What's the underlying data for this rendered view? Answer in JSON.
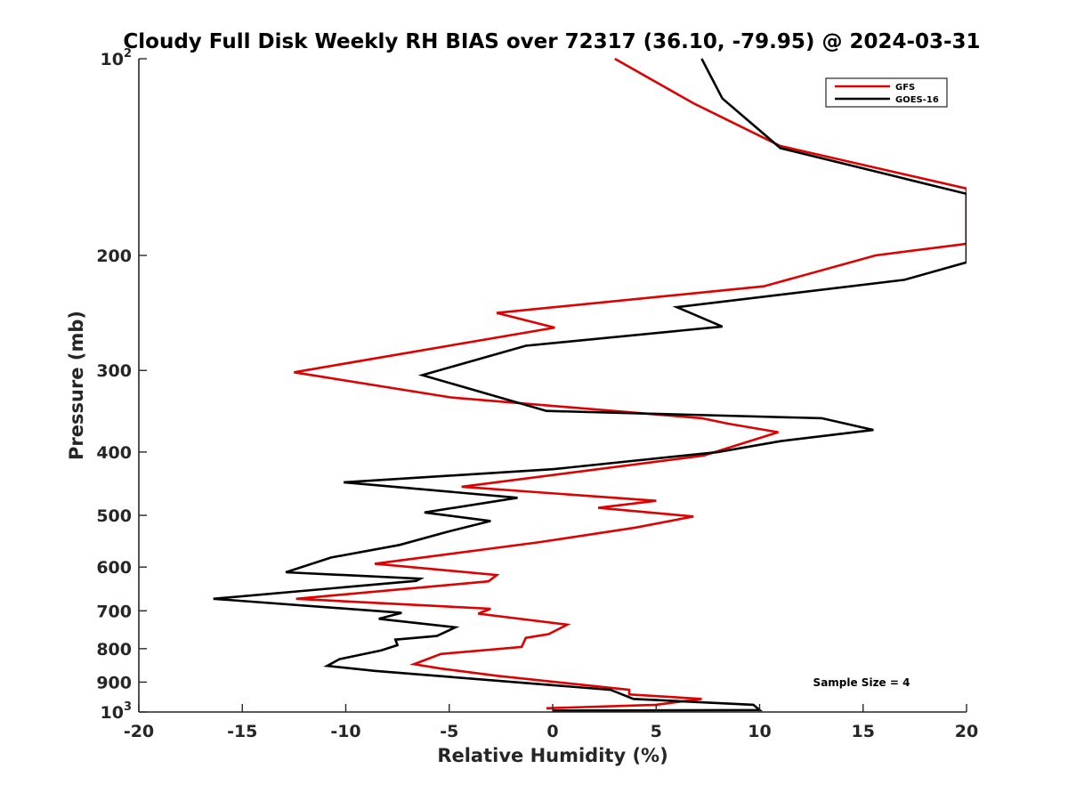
{
  "chart_data": {
    "type": "line",
    "title": "Cloudy Full Disk Weekly RH BIAS over 72317 (36.10, -79.95) @ 2024-03-31",
    "xlabel": "Relative Humidity (%)",
    "ylabel": "Pressure (mb)",
    "xlim": [
      -20,
      20
    ],
    "ylim": [
      100,
      1000
    ],
    "y_scale": "log",
    "y_reversed": true,
    "grid": false,
    "legend_position": "top-right",
    "x_ticks": [
      -20,
      -15,
      -10,
      -5,
      0,
      5,
      10,
      15,
      20
    ],
    "x_tick_labels": [
      "-20",
      "-15",
      "-10",
      "-5",
      "0",
      "5",
      "10",
      "15",
      "20"
    ],
    "y_ticks": [
      {
        "value": 100,
        "label": "10",
        "sup": "2"
      },
      {
        "value": 200,
        "label": "200",
        "sup": ""
      },
      {
        "value": 300,
        "label": "300",
        "sup": ""
      },
      {
        "value": 400,
        "label": "400",
        "sup": ""
      },
      {
        "value": 500,
        "label": "500",
        "sup": ""
      },
      {
        "value": 600,
        "label": "600",
        "sup": ""
      },
      {
        "value": 700,
        "label": "700",
        "sup": ""
      },
      {
        "value": 800,
        "label": "800",
        "sup": ""
      },
      {
        "value": 900,
        "label": "900",
        "sup": ""
      },
      {
        "value": 1000,
        "label": "10",
        "sup": "3"
      }
    ],
    "annotation": "Sample Size = 4",
    "series": [
      {
        "name": "GFS",
        "color": "#e00000",
        "points": [
          [
            3.0,
            100
          ],
          [
            6.8,
            117
          ],
          [
            11.0,
            136
          ],
          [
            20.0,
            158
          ],
          [
            20.0,
            192
          ],
          [
            15.6,
            200
          ],
          [
            10.2,
            223
          ],
          [
            -2.7,
            245
          ],
          [
            0.1,
            258
          ],
          [
            -12.5,
            302
          ],
          [
            -4.9,
            330
          ],
          [
            7.2,
            355
          ],
          [
            8.5,
            362
          ],
          [
            10.9,
            373
          ],
          [
            7.3,
            405
          ],
          [
            -4.4,
            452
          ],
          [
            5.0,
            475
          ],
          [
            2.2,
            487
          ],
          [
            6.8,
            502
          ],
          [
            4.0,
            522
          ],
          [
            -0.7,
            550
          ],
          [
            -8.6,
            593
          ],
          [
            -2.7,
            617
          ],
          [
            -3.1,
            631
          ],
          [
            -12.4,
            671
          ],
          [
            -3.0,
            695
          ],
          [
            -3.6,
            707
          ],
          [
            0.7,
            735
          ],
          [
            -0.2,
            760
          ],
          [
            -1.3,
            770
          ],
          [
            -1.5,
            795
          ],
          [
            -5.4,
            815
          ],
          [
            -6.7,
            845
          ],
          [
            -5.4,
            858
          ],
          [
            -2.7,
            880
          ],
          [
            3.7,
            925
          ],
          [
            3.7,
            940
          ],
          [
            7.2,
            955
          ],
          [
            5.0,
            975
          ],
          [
            -0.3,
            987
          ]
        ]
      },
      {
        "name": "GOES-16",
        "color": "#000000",
        "points": [
          [
            7.2,
            100
          ],
          [
            8.2,
            115
          ],
          [
            11.0,
            137
          ],
          [
            20.0,
            161
          ],
          [
            20.0,
            205
          ],
          [
            17.0,
            218
          ],
          [
            6.0,
            240
          ],
          [
            8.2,
            257
          ],
          [
            -1.3,
            275
          ],
          [
            -6.3,
            305
          ],
          [
            -0.3,
            346
          ],
          [
            13.0,
            355
          ],
          [
            15.5,
            370
          ],
          [
            11.0,
            385
          ],
          [
            8.0,
            400
          ],
          [
            0.0,
            425
          ],
          [
            -10.1,
            445
          ],
          [
            -1.7,
            470
          ],
          [
            -6.2,
            495
          ],
          [
            -3.0,
            510
          ],
          [
            -5.1,
            530
          ],
          [
            -7.4,
            555
          ],
          [
            -10.7,
            580
          ],
          [
            -12.9,
            611
          ],
          [
            -6.4,
            625
          ],
          [
            -6.6,
            630
          ],
          [
            -16.4,
            671
          ],
          [
            -7.3,
            705
          ],
          [
            -8.4,
            720
          ],
          [
            -4.7,
            742
          ],
          [
            -5.6,
            765
          ],
          [
            -7.6,
            775
          ],
          [
            -7.5,
            790
          ],
          [
            -8.3,
            805
          ],
          [
            -10.3,
            830
          ],
          [
            -10.9,
            850
          ],
          [
            -8.6,
            865
          ],
          [
            2.8,
            925
          ],
          [
            3.9,
            955
          ],
          [
            9.7,
            975
          ],
          [
            10.0,
            993
          ],
          [
            0.0,
            995
          ]
        ]
      }
    ]
  }
}
